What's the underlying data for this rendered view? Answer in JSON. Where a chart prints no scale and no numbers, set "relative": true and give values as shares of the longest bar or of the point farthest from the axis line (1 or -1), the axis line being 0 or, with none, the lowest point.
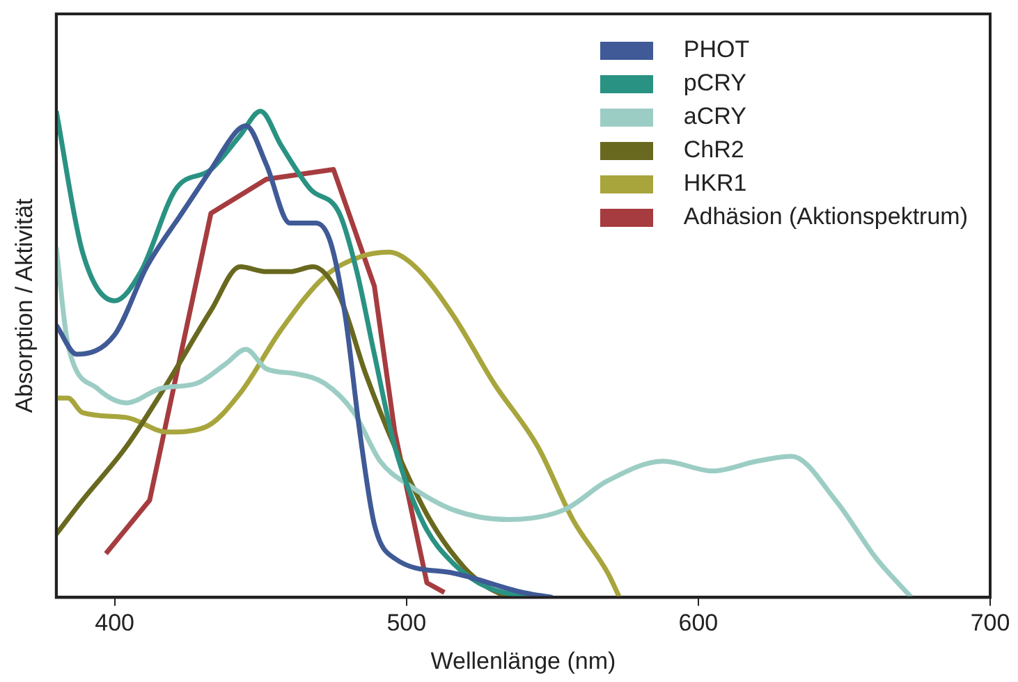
{
  "chart_data": {
    "type": "line",
    "relative": true,
    "xlabel": "Wellenlänge (nm)",
    "ylabel": "Absorption / Aktivität",
    "xlim": [
      380,
      700
    ],
    "xticks": [
      400,
      500,
      600,
      700
    ],
    "legend": "top right",
    "grid": false,
    "series": [
      {
        "name": "PHOT",
        "color": "#3f5a96",
        "x": [
          380,
          387,
          400,
          411,
          423,
          433,
          442,
          445,
          452,
          460,
          469,
          474,
          479,
          484,
          489,
          496,
          516,
          540,
          550
        ],
        "values": [
          0.56,
          0.5,
          0.54,
          0.68,
          0.79,
          0.88,
          0.96,
          0.97,
          0.89,
          0.77,
          0.77,
          0.73,
          0.58,
          0.34,
          0.15,
          0.08,
          0.05,
          0.01,
          0
        ]
      },
      {
        "name": "pCRY",
        "color": "#2a9283",
        "x": [
          380,
          389,
          400,
          409,
          421,
          433,
          443,
          450,
          457,
          467,
          477,
          483,
          489,
          496,
          506,
          516,
          528,
          545
        ],
        "values": [
          1.0,
          0.71,
          0.61,
          0.67,
          0.84,
          0.88,
          0.95,
          1.0,
          0.93,
          0.84,
          0.79,
          0.67,
          0.5,
          0.31,
          0.15,
          0.07,
          0.02,
          0
        ]
      },
      {
        "name": "aCRY",
        "color": "#9ccdc4",
        "x": [
          380,
          384,
          394,
          404,
          416,
          428,
          438,
          445,
          452,
          462,
          472,
          482,
          491,
          501,
          516,
          535,
          554,
          569,
          588,
          605,
          620,
          632,
          647,
          661,
          673
        ],
        "values": [
          0.72,
          0.52,
          0.43,
          0.4,
          0.43,
          0.44,
          0.48,
          0.51,
          0.47,
          0.46,
          0.44,
          0.38,
          0.28,
          0.23,
          0.18,
          0.16,
          0.18,
          0.24,
          0.28,
          0.26,
          0.28,
          0.29,
          0.2,
          0.08,
          0
        ]
      },
      {
        "name": "ChR2",
        "color": "#68691f",
        "x": [
          380,
          389,
          404,
          418,
          433,
          443,
          452,
          460,
          468,
          477,
          486,
          496,
          508,
          520,
          528,
          535
        ],
        "values": [
          0.13,
          0.2,
          0.31,
          0.44,
          0.59,
          0.68,
          0.67,
          0.67,
          0.68,
          0.62,
          0.46,
          0.31,
          0.16,
          0.06,
          0.02,
          0
        ]
      },
      {
        "name": "HKR1",
        "color": "#a8a53d",
        "x": [
          380,
          384,
          389,
          404,
          418,
          431,
          443,
          457,
          472,
          484,
          494,
          503,
          516,
          530,
          545,
          557,
          569,
          573
        ],
        "values": [
          0.41,
          0.41,
          0.38,
          0.37,
          0.34,
          0.35,
          0.42,
          0.55,
          0.66,
          0.7,
          0.71,
          0.68,
          0.58,
          0.44,
          0.31,
          0.16,
          0.05,
          0
        ]
      },
      {
        "name": "Adhäsion (Aktionspektrum)",
        "color": "#a63c3f",
        "line_style": "solid",
        "x": [
          397,
          412,
          433,
          452,
          475,
          489,
          496,
          507,
          513
        ],
        "values": [
          0.09,
          0.2,
          0.79,
          0.86,
          0.88,
          0.64,
          0.34,
          0.03,
          0.01
        ]
      }
    ]
  }
}
